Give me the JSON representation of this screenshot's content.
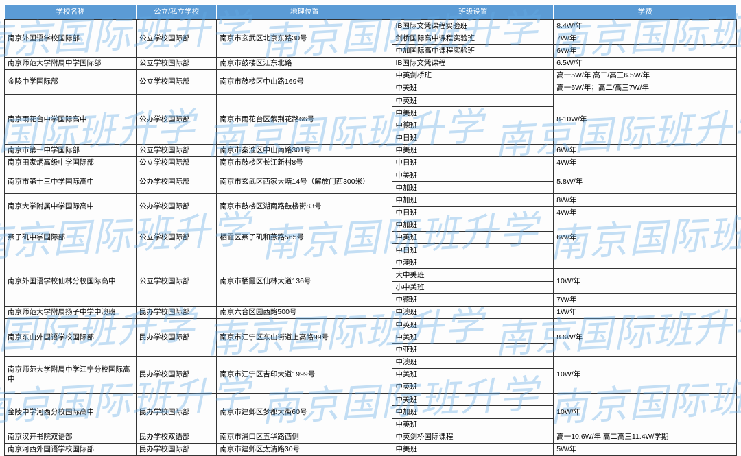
{
  "watermark_text": "南京国际班升学",
  "watermark_color": "rgba(100,170,230,0.38)",
  "header_bg": "#5b9bd5",
  "header_fg": "#ffffff",
  "border_color": "#333333",
  "columns": [
    "学校名称",
    "公立/私立学校",
    "地理位置",
    "班级设置",
    "学费"
  ],
  "rows": [
    {
      "school": "南京外国语学校国际部",
      "type": "公立学校国际部",
      "loc": "南京市玄武区北京东路30号",
      "classes": [
        "IB国际文凭课程实验班",
        "剑桥国际高中课程实验班",
        "中加国际高中课程实验班"
      ],
      "fees": [
        "8.4W/年",
        "7W/年",
        "6W/年"
      ]
    },
    {
      "school": "南京师范大学附属中学国际部",
      "type": "公立学校国际部",
      "loc": "南京市鼓楼区江东北路",
      "classes": [
        "IB国际文凭课程"
      ],
      "fees": [
        "6.5W/年"
      ]
    },
    {
      "school": "金陵中学国际部",
      "type": "公立学校国际部",
      "loc": "南京市鼓楼区中山路169号",
      "classes": [
        "中英剑桥班",
        "中美班"
      ],
      "fees": [
        "高一5W/年 高二/高三6.5W/年",
        "高一6W/年；高二/高三7W/年"
      ]
    },
    {
      "school": "南京雨花台中学国际高中",
      "type": "公办学校国际部",
      "loc": "南京市雨花台区紫荆花路66号",
      "classes": [
        "中英班",
        "中美班",
        "中德班",
        "中日班"
      ],
      "fees": [
        "8-10W/年"
      ],
      "mergeFee": true
    },
    {
      "school": "南京市第一中学国际部",
      "type": "公立学校国际部",
      "loc": "南京市秦淮区中山南路301号",
      "classes": [
        "中美班"
      ],
      "fees": [
        "6W/年"
      ]
    },
    {
      "school": "南京田家炳高级中学国际部",
      "type": "公立学校国际部",
      "loc": "南京市鼓楼区长江新村8号",
      "classes": [
        "中日班"
      ],
      "fees": [
        "4W/年"
      ]
    },
    {
      "school": "南京市第十三中学国际高中",
      "type": "公办学校国际部",
      "loc": "南京市玄武区西家大塘14号（解放门西300米）",
      "classes": [
        "中美班",
        "中加班"
      ],
      "fees": [
        "5.8W/年"
      ],
      "mergeFee": true
    },
    {
      "school": "南京大学附属中学国际高中",
      "type": "公办学校国际部",
      "loc": "南京市鼓楼区湖南路鼓楼街83号",
      "classes": [
        "中加班",
        "中日班"
      ],
      "fees": [
        "8W/年",
        "4W/年"
      ]
    },
    {
      "school": "燕子矶中学国际部",
      "type": "公立学校国际部",
      "loc": "栖霞区燕子矶和燕路565号",
      "classes": [
        "中加班",
        "中英班",
        "中日班"
      ],
      "fees": [
        "6W/年"
      ],
      "mergeFee": true
    },
    {
      "school": "南京外国语学校仙林分校国际高中",
      "type": "公立学校国际部",
      "loc": "南京市栖霞区仙林大道136号",
      "classes": [
        "中澳班",
        "大中美班",
        "小中美班",
        "中德班"
      ],
      "fees": [
        "",
        "10W/年",
        "",
        "7W/年"
      ],
      "feeSpans": [
        1,
        2,
        0,
        1
      ]
    },
    {
      "school": "南京师范大学附属扬子中学中澳班",
      "type": "民办学校国际部",
      "loc": "南京六合区园西路500号",
      "classes": [
        "中澳班"
      ],
      "fees": [
        "1W/年"
      ]
    },
    {
      "school": "南京东山外国语学校国际部",
      "type": "民办学校国际部",
      "loc": "南京市江宁区东山街道上高路99号",
      "classes": [
        "中英班",
        "中美班",
        "中亚班"
      ],
      "fees": [
        "8.6W/年"
      ],
      "mergeFee": true
    },
    {
      "school": "南京师范大学附属中学江宁分校国际高中",
      "type": "民办学校国际部",
      "loc": "南京市江宁区吉印大道1999号",
      "classes": [
        "中澳班",
        "中美班",
        "中英班"
      ],
      "fees": [
        "10W/年"
      ],
      "mergeFee": true
    },
    {
      "school": "金陵中学河西分校国际高中",
      "type": "民办学校国际部",
      "loc": "南京市建邺区梦都大街60号",
      "classes": [
        "中美班",
        "中加班",
        "中英班"
      ],
      "fees": [
        "10W/年"
      ],
      "mergeFee": true
    },
    {
      "school": "南京汉开书院双语部",
      "type": "民办学校双语部",
      "loc": "南京市浦口区五华路西侧",
      "classes": [
        "中英剑桥国际课程"
      ],
      "fees": [
        "高一10.6W/年 高二高三11.4W/学期"
      ]
    },
    {
      "school": "南京河西外国语学校国际部",
      "type": "民办学校国际部",
      "loc": "南京市建邺区太清路30号",
      "classes": [
        "中美班"
      ],
      "fees": [
        "5W/年"
      ]
    }
  ]
}
